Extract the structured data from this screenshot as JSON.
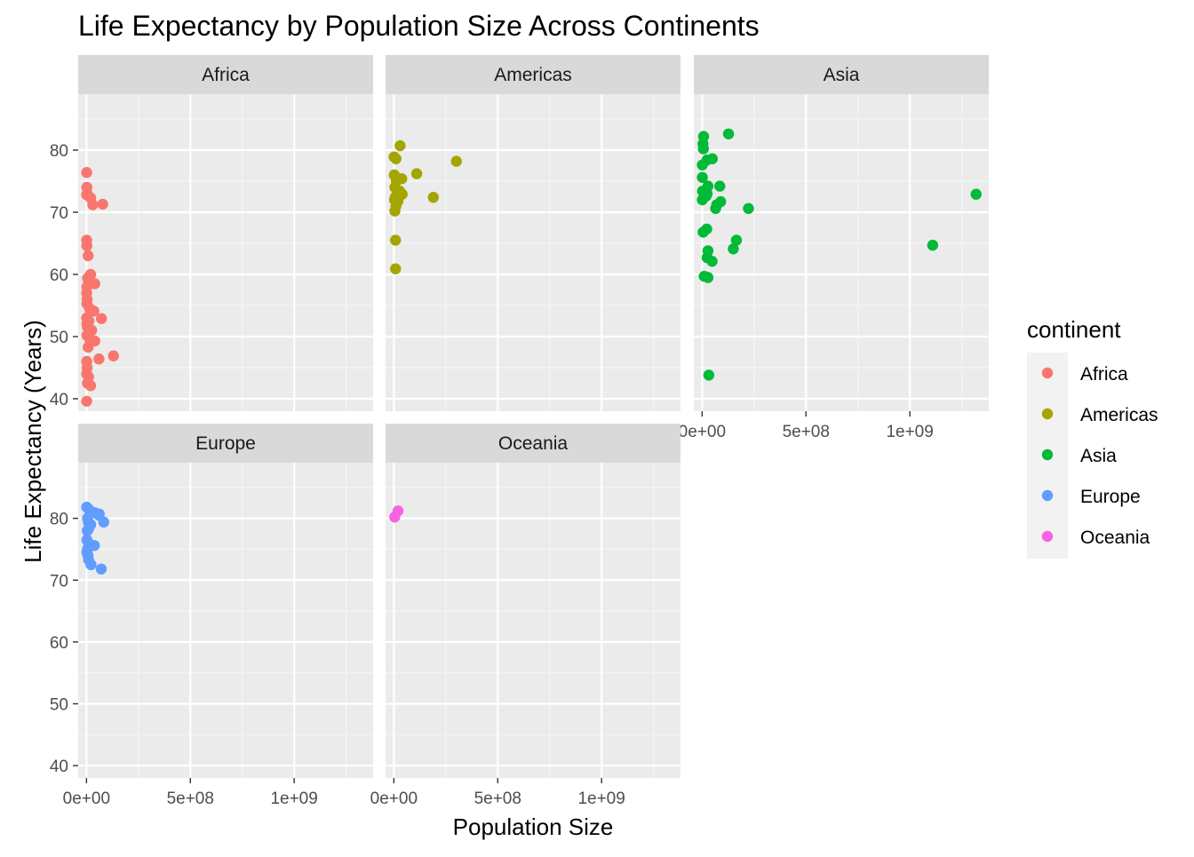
{
  "chart_data": {
    "type": "scatter",
    "title": "Life Expectancy by Population Size Across Continents",
    "xlabel": "Population Size",
    "ylabel": "Life Expectancy (Years)",
    "xlim": [
      -40000000,
      1380000000
    ],
    "ylim": [
      38,
      89
    ],
    "x_ticks": [
      0,
      500000000,
      1000000000
    ],
    "x_tick_labels": [
      "0e+00",
      "5e+08",
      "1e+09"
    ],
    "y_ticks": [
      40,
      50,
      60,
      70,
      80
    ],
    "y_tick_labels": [
      "40",
      "50",
      "60",
      "70",
      "80"
    ],
    "grid": true,
    "legend": {
      "title": "continent",
      "position": "right",
      "entries": [
        "Africa",
        "Americas",
        "Asia",
        "Europe",
        "Oceania"
      ]
    },
    "series": [
      {
        "name": "Africa",
        "color": "#F8766D",
        "points": [
          [
            1000000,
            76.4
          ],
          [
            2000000,
            74.0
          ],
          [
            3000000,
            73.0
          ],
          [
            1000000,
            72.8
          ],
          [
            20000000,
            72.3
          ],
          [
            30000000,
            71.2
          ],
          [
            78000000,
            71.3
          ],
          [
            1000000,
            65.5
          ],
          [
            2000000,
            64.6
          ],
          [
            8000000,
            63.0
          ],
          [
            20000000,
            60.0
          ],
          [
            5000000,
            59.4
          ],
          [
            10000000,
            58.9
          ],
          [
            40000000,
            58.5
          ],
          [
            2000000,
            58.0
          ],
          [
            1000000,
            57.0
          ],
          [
            3000000,
            56.0
          ],
          [
            2000000,
            55.3
          ],
          [
            15000000,
            54.5
          ],
          [
            35000000,
            54.1
          ],
          [
            1000000,
            53.0
          ],
          [
            12000000,
            52.5
          ],
          [
            72000000,
            52.9
          ],
          [
            2000000,
            52.0
          ],
          [
            5000000,
            51.5
          ],
          [
            25000000,
            51.0
          ],
          [
            2000000,
            50.2
          ],
          [
            15000000,
            49.6
          ],
          [
            40000000,
            49.3
          ],
          [
            8000000,
            48.3
          ],
          [
            60000000,
            46.4
          ],
          [
            130000000,
            46.9
          ],
          [
            1000000,
            46.0
          ],
          [
            3000000,
            45.0
          ],
          [
            1000000,
            44.0
          ],
          [
            10000000,
            43.5
          ],
          [
            5000000,
            42.5
          ],
          [
            20000000,
            42.1
          ],
          [
            1000000,
            39.6
          ]
        ]
      },
      {
        "name": "Americas",
        "color": "#A3A500",
        "points": [
          [
            30000000,
            80.7
          ],
          [
            1000000,
            78.9
          ],
          [
            10000000,
            78.6
          ],
          [
            301000000,
            78.2
          ],
          [
            110000000,
            76.2
          ],
          [
            2000000,
            76.0
          ],
          [
            38000000,
            75.4
          ],
          [
            12000000,
            75.0
          ],
          [
            5000000,
            74.0
          ],
          [
            28000000,
            73.4
          ],
          [
            40000000,
            72.9
          ],
          [
            8000000,
            72.5
          ],
          [
            190000000,
            72.4
          ],
          [
            3000000,
            72.0
          ],
          [
            20000000,
            71.8
          ],
          [
            10000000,
            71.0
          ],
          [
            5000000,
            70.2
          ],
          [
            8000000,
            65.5
          ],
          [
            8000000,
            60.9
          ]
        ]
      },
      {
        "name": "Asia",
        "color": "#00BA38",
        "points": [
          [
            127000000,
            82.6
          ],
          [
            7000000,
            82.2
          ],
          [
            4000000,
            81.0
          ],
          [
            6000000,
            80.2
          ],
          [
            49000000,
            78.6
          ],
          [
            23000000,
            78.4
          ],
          [
            1000000,
            77.6
          ],
          [
            85000000,
            74.2
          ],
          [
            28000000,
            74.2
          ],
          [
            1000000,
            75.6
          ],
          [
            2000000,
            73.4
          ],
          [
            24000000,
            73.0
          ],
          [
            19000000,
            72.6
          ],
          [
            1000000,
            72.0
          ],
          [
            89000000,
            71.7
          ],
          [
            70000000,
            71.2
          ],
          [
            65000000,
            70.6
          ],
          [
            1319000000,
            72.9
          ],
          [
            223000000,
            70.6
          ],
          [
            22000000,
            67.3
          ],
          [
            5000000,
            66.8
          ],
          [
            165000000,
            65.5
          ],
          [
            1110000000,
            64.7
          ],
          [
            28000000,
            63.8
          ],
          [
            150000000,
            64.1
          ],
          [
            24000000,
            62.7
          ],
          [
            48000000,
            62.1
          ],
          [
            10000000,
            59.7
          ],
          [
            28000000,
            59.5
          ],
          [
            32000000,
            43.8
          ]
        ]
      },
      {
        "name": "Europe",
        "color": "#619CFF",
        "points": [
          [
            1000000,
            81.8
          ],
          [
            10000000,
            81.5
          ],
          [
            40000000,
            80.9
          ],
          [
            61000000,
            80.7
          ],
          [
            83000000,
            79.4
          ],
          [
            60000000,
            80.5
          ],
          [
            5000000,
            80.0
          ],
          [
            9000000,
            79.4
          ],
          [
            20000000,
            79.0
          ],
          [
            10000000,
            78.3
          ],
          [
            4000000,
            78.0
          ],
          [
            2000000,
            76.5
          ],
          [
            10000000,
            76.0
          ],
          [
            38000000,
            75.6
          ],
          [
            5000000,
            75.0
          ],
          [
            2000000,
            74.5
          ],
          [
            7000000,
            74.0
          ],
          [
            10000000,
            73.3
          ],
          [
            22000000,
            72.5
          ],
          [
            71000000,
            71.8
          ]
        ]
      },
      {
        "name": "Oceania",
        "color": "#F564E3",
        "points": [
          [
            20000000,
            81.2
          ],
          [
            4000000,
            80.2
          ]
        ]
      }
    ]
  }
}
